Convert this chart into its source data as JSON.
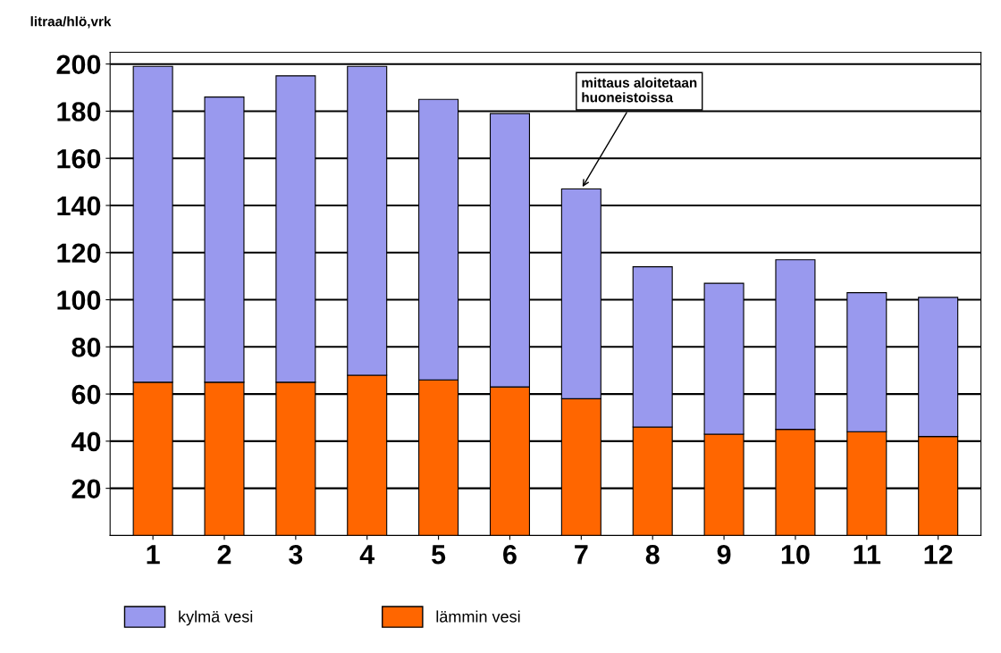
{
  "chart_data": {
    "type": "bar",
    "ylabel": "litraa/hlö,vrk",
    "categories": [
      "1",
      "2",
      "3",
      "4",
      "5",
      "6",
      "7",
      "8",
      "9",
      "10",
      "11",
      "12"
    ],
    "stacked": true,
    "series": [
      {
        "name": "lämmin vesi",
        "color": "#ff6600",
        "values": [
          65,
          65,
          65,
          68,
          66,
          63,
          58,
          46,
          43,
          45,
          44,
          42
        ]
      },
      {
        "name": "kylmä vesi",
        "color": "#9999ee",
        "values": [
          134,
          121,
          130,
          131,
          119,
          116,
          89,
          68,
          64,
          72,
          59,
          59
        ]
      }
    ],
    "ylim": [
      0,
      205
    ],
    "yticks": [
      20,
      40,
      60,
      80,
      100,
      120,
      140,
      160,
      180,
      200
    ],
    "grid": "y",
    "legend": "bottom",
    "annotations": [
      {
        "text": "mittaus aloitetaan\nhuoneistoissa",
        "x": "7",
        "y": 147
      }
    ]
  }
}
